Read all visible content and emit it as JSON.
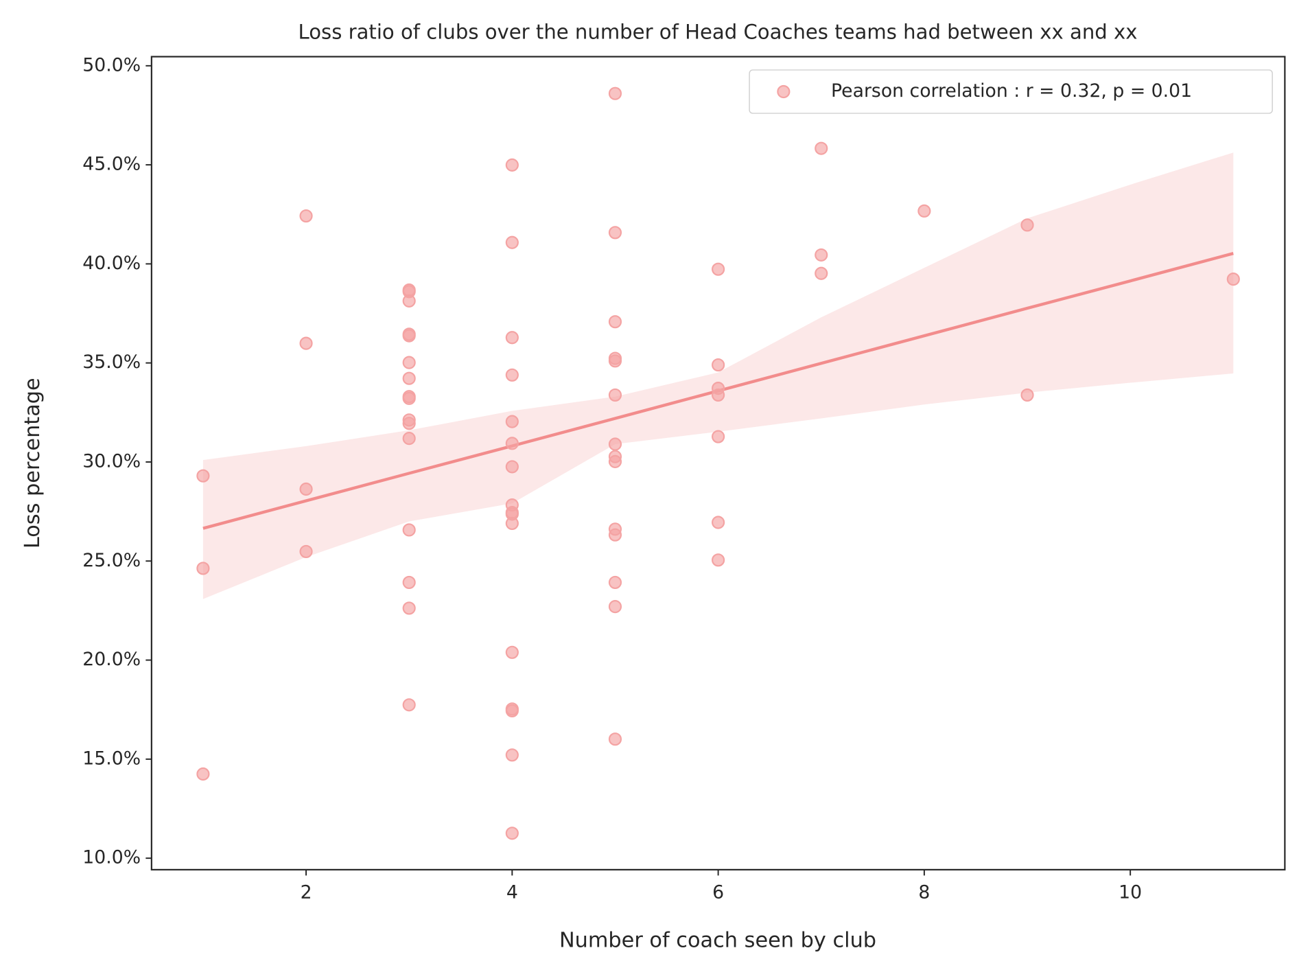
{
  "chart_data": {
    "type": "scatter",
    "title": "Loss ratio of clubs over the number of Head Coaches teams had between xx and xx",
    "x_label": "Number of coach seen by club",
    "y_label": "Loss percentage",
    "xlim": [
      0.5,
      11.5
    ],
    "ylim": [
      9.42,
      50.46
    ],
    "xticks": [
      2,
      4,
      6,
      8,
      10
    ],
    "yticks": [
      {
        "value": 10,
        "label": "10.0%"
      },
      {
        "value": 15,
        "label": "15.0%"
      },
      {
        "value": 20,
        "label": "20.0%"
      },
      {
        "value": 25,
        "label": "25.0%"
      },
      {
        "value": 30,
        "label": "30.0%"
      },
      {
        "value": 35,
        "label": "35.0%"
      },
      {
        "value": 40,
        "label": "40.0%"
      },
      {
        "value": 45,
        "label": "45.0%"
      },
      {
        "value": 50,
        "label": "50.0%"
      }
    ],
    "grid": false,
    "legend": "upper right",
    "series": [
      {
        "name": "Pearson correlation : r = 0.32, p = 0.01",
        "color": "#f4a3a3",
        "x": [
          1,
          1,
          1,
          2,
          2,
          2,
          2,
          3,
          3,
          3,
          3,
          3,
          3,
          3,
          3,
          3,
          3,
          3,
          3,
          3,
          3,
          3,
          3,
          4,
          4,
          4,
          4,
          4,
          4,
          4,
          4,
          4,
          4,
          4,
          4,
          4,
          4,
          4,
          4,
          5,
          5,
          5,
          5,
          5,
          5,
          5,
          5,
          5,
          5,
          5,
          5,
          5,
          5,
          6,
          6,
          6,
          6,
          6,
          6,
          6,
          7,
          7,
          7,
          8,
          9,
          9,
          11
        ],
        "values": [
          29.3,
          24.63,
          14.25,
          42.42,
          35.99,
          28.63,
          25.48,
          38.68,
          38.6,
          38.13,
          36.45,
          36.37,
          35.02,
          34.22,
          33.3,
          33.21,
          32.12,
          31.95,
          31.19,
          26.57,
          23.92,
          22.62,
          17.74,
          44.99,
          41.08,
          36.28,
          34.39,
          32.04,
          30.94,
          29.76,
          27.83,
          27.45,
          27.37,
          26.9,
          20.39,
          17.53,
          17.44,
          15.21,
          11.26,
          48.6,
          41.58,
          37.08,
          35.23,
          35.1,
          33.38,
          30.9,
          30.27,
          30.02,
          26.61,
          26.32,
          23.92,
          22.7,
          16.01,
          39.73,
          34.9,
          33.72,
          33.38,
          31.28,
          26.95,
          25.05,
          45.83,
          40.45,
          39.52,
          42.67,
          41.96,
          33.38,
          39.23
        ]
      }
    ],
    "regression": {
      "color": "#f28c8c",
      "band_color": "#fce8e8",
      "x": [
        1,
        2,
        3,
        4,
        5,
        6,
        7,
        8,
        9,
        10,
        11
      ],
      "values": [
        26.65,
        28.04,
        29.43,
        30.81,
        32.2,
        33.59,
        34.98,
        36.37,
        37.76,
        39.14,
        40.53
      ],
      "upper": [
        30.1,
        30.8,
        31.6,
        32.58,
        33.3,
        34.52,
        37.3,
        39.8,
        42.3,
        44.0,
        45.62
      ],
      "lower": [
        23.08,
        25.2,
        27.0,
        27.91,
        30.9,
        31.53,
        32.2,
        32.9,
        33.5,
        34.0,
        34.47
      ]
    }
  }
}
